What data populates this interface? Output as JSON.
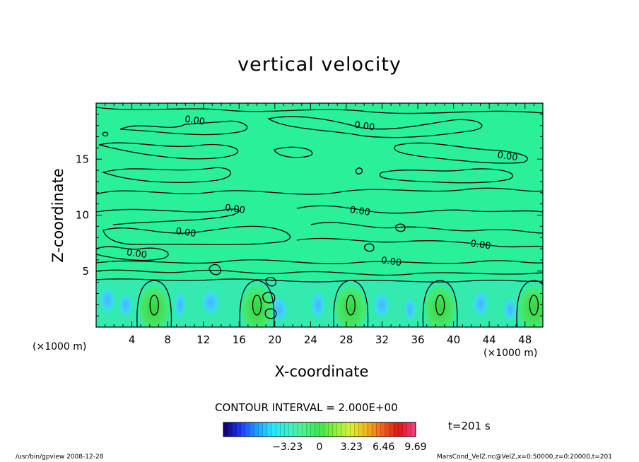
{
  "chart_data": {
    "type": "heatmap",
    "title": "vertical velocity",
    "xlabel": "X-coordinate",
    "ylabel": "Z-coordinate",
    "x_unit_left": "(×1000 m)",
    "x_unit_right": "(×1000 m)",
    "xlim": [
      0,
      50
    ],
    "ylim": [
      0,
      20
    ],
    "x_ticks": [
      4,
      8,
      12,
      16,
      20,
      24,
      28,
      32,
      36,
      40,
      44,
      48
    ],
    "x_tick_labels": [
      "4",
      "8",
      "12",
      "16",
      "20",
      "24",
      "28",
      "32",
      "36",
      "40",
      "44",
      "48"
    ],
    "y_ticks": [
      5,
      10,
      15
    ],
    "y_tick_labels": [
      "5",
      "10",
      "15"
    ],
    "contour_interval_text": "CONTOUR INTERVAL = 2.000E+00",
    "contour_labels": [
      {
        "text": "0.00",
        "x": 11,
        "z": 18.2
      },
      {
        "text": "0.00",
        "x": 30,
        "z": 17.7
      },
      {
        "text": "0.00",
        "x": 46,
        "z": 15.0
      },
      {
        "text": "0.00",
        "x": 15.5,
        "z": 10.3
      },
      {
        "text": "0.00",
        "x": 29.5,
        "z": 10.1
      },
      {
        "text": "0.00",
        "x": 10,
        "z": 8.2
      },
      {
        "text": "0.00",
        "x": 4.5,
        "z": 6.3
      },
      {
        "text": "0.00",
        "x": 43,
        "z": 7.1
      },
      {
        "text": "0.00",
        "x": 33,
        "z": 5.6
      }
    ],
    "updraft_centers_x": [
      6.5,
      18.0,
      28.5,
      38.5,
      49.0
    ],
    "colorbar": {
      "range": [
        -9.69,
        9.69
      ],
      "tick_values": [
        -3.23,
        0,
        3.23,
        6.46,
        9.69
      ],
      "tick_labels": [
        "−3.23",
        "0",
        "3.23",
        "6.46",
        "9.69"
      ],
      "colors": [
        "#14007a",
        "#1e3cff",
        "#1ea0ff",
        "#28e6ff",
        "#3cf0c8",
        "#50f08c",
        "#3ce650",
        "#8cf03c",
        "#dcf03c",
        "#f0b41e",
        "#f0641e",
        "#dc1414",
        "#f03c78"
      ]
    },
    "background_color": "#2af09a",
    "time_label": "t=201 s",
    "grid": false
  },
  "footer": {
    "left": "/usr/bin/gpview  2008-12-28",
    "right": "MarsCond_VelZ.nc@VelZ,x=0:50000,z=0:20000,t=201"
  }
}
